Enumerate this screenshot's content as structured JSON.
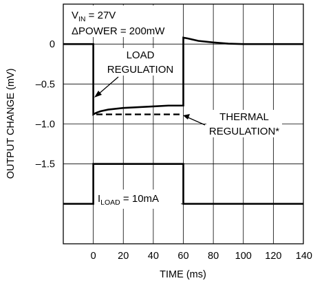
{
  "chart_data": {
    "type": "line",
    "title": "",
    "xlabel": "TIME (ms)",
    "ylabel": "OUTPUT CHANGE (mV)",
    "xlim": [
      -20,
      140
    ],
    "x_ticks": [
      0,
      20,
      40,
      60,
      80,
      100,
      120,
      140
    ],
    "x_tick_labels": [
      "0",
      "20",
      "40",
      "60",
      "80",
      "100",
      "120",
      "140"
    ],
    "ylim": [
      -2.5,
      0.5
    ],
    "y_ticks": [
      0,
      -0.5,
      -1.0,
      -1.5
    ],
    "y_tick_labels": [
      "0",
      "–0.5",
      "–1.0",
      "–1.5"
    ],
    "grid": true,
    "series": [
      {
        "style": "solid",
        "color": "#000000",
        "points": [
          [
            -20,
            0
          ],
          [
            0,
            0
          ],
          [
            0,
            -0.88
          ],
          [
            2,
            -0.86
          ],
          [
            5,
            -0.84
          ],
          [
            10,
            -0.82
          ],
          [
            20,
            -0.8
          ],
          [
            30,
            -0.79
          ],
          [
            40,
            -0.78
          ],
          [
            50,
            -0.77
          ],
          [
            60,
            -0.77
          ],
          [
            60,
            0.08
          ],
          [
            63,
            0.07
          ],
          [
            70,
            0.04
          ],
          [
            80,
            0.02
          ],
          [
            90,
            0.005
          ],
          [
            100,
            0
          ],
          [
            140,
            0
          ]
        ]
      },
      {
        "style": "dashed",
        "color": "#000000",
        "points": [
          [
            2,
            -0.88
          ],
          [
            58,
            -0.88
          ]
        ]
      },
      {
        "style": "solid",
        "color": "#000000",
        "role": "load-step",
        "points": [
          [
            -20,
            -2.0
          ],
          [
            0,
            -2.0
          ],
          [
            0,
            -1.5
          ],
          [
            60,
            -1.5
          ],
          [
            60,
            -2.0
          ],
          [
            140,
            -2.0
          ]
        ]
      }
    ],
    "annotations": {
      "vin_main": "V",
      "vin_sub": "IN",
      "vin_rest": " = 27V",
      "power": "ΔPOWER = 200mW",
      "load_reg_line1": "LOAD",
      "load_reg_line2": "REGULATION",
      "thermal_line1": "THERMAL",
      "thermal_line2": "REGULATION*",
      "iload_main": "I",
      "iload_sub": "LOAD",
      "iload_rest": " = 10mA"
    }
  }
}
